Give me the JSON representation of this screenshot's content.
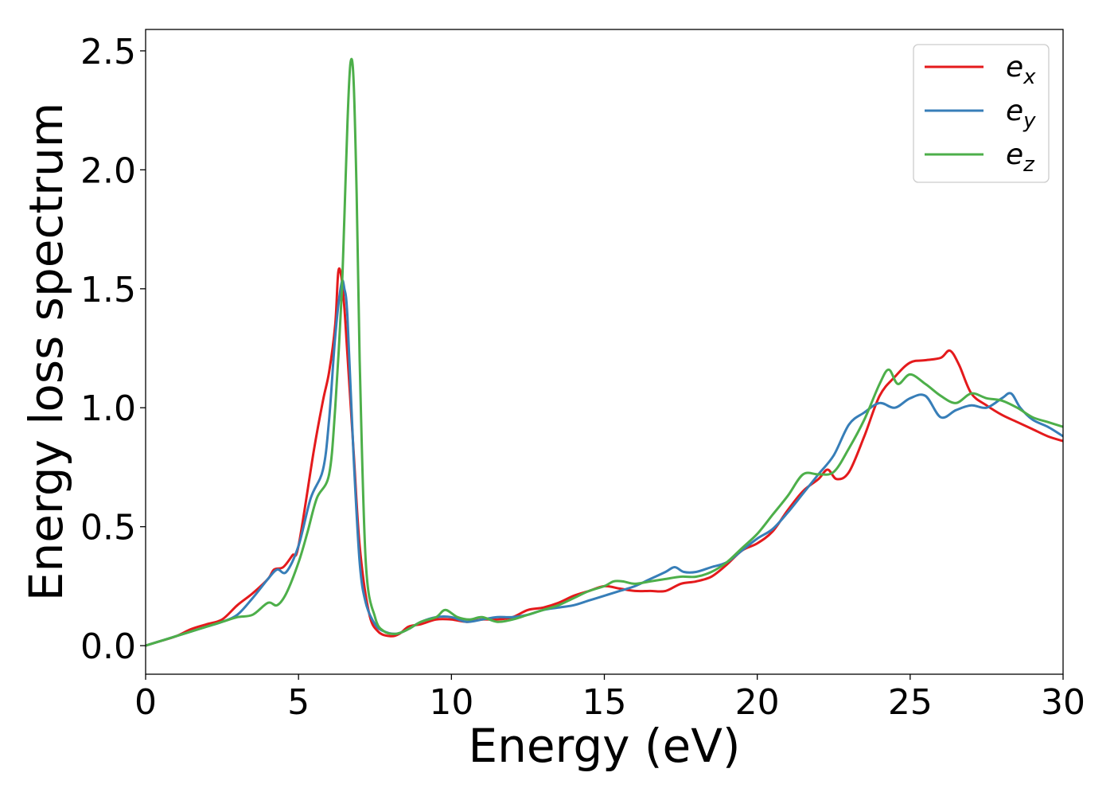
{
  "chart_data": {
    "type": "line",
    "xlabel": "Energy (eV)",
    "ylabel": "Energy loss spectrum",
    "xlim": [
      0,
      30
    ],
    "ylim": [
      -0.12,
      2.59
    ],
    "xticks": [
      0,
      5,
      10,
      15,
      20,
      25,
      30
    ],
    "xtick_labels": [
      "0",
      "5",
      "10",
      "15",
      "20",
      "25",
      "30"
    ],
    "yticks": [
      0.0,
      0.5,
      1.0,
      1.5,
      2.0,
      2.5
    ],
    "ytick_labels": [
      "0.0",
      "0.5",
      "1.0",
      "1.5",
      "2.0",
      "2.5"
    ],
    "grid": false,
    "legend_position": "top-right",
    "series": [
      {
        "name": "e_x",
        "label_base": "e",
        "label_sub": "x",
        "color": "#e41a1c",
        "x": [
          0,
          0.5,
          1,
          1.5,
          2,
          2.5,
          3,
          3.5,
          4,
          4.2,
          4.5,
          4.8,
          5,
          5.5,
          5.8,
          6.0,
          6.2,
          6.3,
          6.4,
          6.5,
          6.6,
          6.8,
          7.0,
          7.3,
          7.6,
          8.0,
          8.3,
          8.6,
          9,
          9.5,
          10,
          10.5,
          11,
          11.5,
          12,
          12.5,
          13,
          13.5,
          14,
          14.5,
          15,
          15.5,
          16,
          16.5,
          17,
          17.5,
          18,
          18.5,
          19,
          19.5,
          20,
          20.5,
          21,
          21.5,
          22,
          22.3,
          22.6,
          23,
          23.5,
          24,
          24.5,
          25,
          25.5,
          26,
          26.3,
          26.6,
          27,
          27.5,
          28,
          28.5,
          29,
          29.5,
          30
        ],
        "values": [
          0,
          0.02,
          0.04,
          0.07,
          0.09,
          0.11,
          0.17,
          0.22,
          0.28,
          0.32,
          0.33,
          0.38,
          0.42,
          0.82,
          1.03,
          1.15,
          1.35,
          1.57,
          1.55,
          1.42,
          1.22,
          0.82,
          0.42,
          0.14,
          0.06,
          0.04,
          0.05,
          0.08,
          0.09,
          0.11,
          0.11,
          0.1,
          0.11,
          0.11,
          0.12,
          0.15,
          0.16,
          0.18,
          0.21,
          0.23,
          0.25,
          0.24,
          0.23,
          0.23,
          0.23,
          0.26,
          0.27,
          0.29,
          0.34,
          0.4,
          0.43,
          0.48,
          0.57,
          0.65,
          0.7,
          0.74,
          0.7,
          0.73,
          0.88,
          1.05,
          1.13,
          1.19,
          1.2,
          1.21,
          1.24,
          1.18,
          1.06,
          1.01,
          0.97,
          0.94,
          0.91,
          0.88,
          0.86
        ]
      },
      {
        "name": "e_y",
        "label_base": "e",
        "label_sub": "y",
        "color": "#377eb8",
        "x": [
          0,
          0.5,
          1,
          1.5,
          2,
          2.5,
          3,
          3.5,
          4,
          4.3,
          4.6,
          5,
          5.4,
          5.8,
          6.0,
          6.2,
          6.4,
          6.5,
          6.6,
          6.8,
          7.0,
          7.2,
          7.5,
          7.8,
          8.2,
          8.6,
          9,
          9.5,
          10,
          10.5,
          11,
          11.5,
          12,
          12.5,
          13,
          13.5,
          14,
          14.5,
          15,
          15.5,
          16,
          16.5,
          17,
          17.3,
          17.6,
          18,
          18.5,
          19,
          19.5,
          20,
          20.5,
          21,
          21.5,
          22,
          22.5,
          23,
          23.5,
          24,
          24.5,
          25,
          25.5,
          26,
          26.5,
          27,
          27.5,
          28,
          28.3,
          28.6,
          29,
          29.5,
          30
        ],
        "values": [
          0,
          0.02,
          0.04,
          0.06,
          0.08,
          0.1,
          0.13,
          0.2,
          0.28,
          0.32,
          0.31,
          0.42,
          0.62,
          0.74,
          0.95,
          1.3,
          1.52,
          1.5,
          1.38,
          0.8,
          0.35,
          0.18,
          0.09,
          0.06,
          0.05,
          0.07,
          0.1,
          0.12,
          0.12,
          0.1,
          0.11,
          0.12,
          0.12,
          0.13,
          0.15,
          0.16,
          0.17,
          0.19,
          0.21,
          0.23,
          0.25,
          0.28,
          0.31,
          0.33,
          0.31,
          0.31,
          0.33,
          0.35,
          0.4,
          0.45,
          0.49,
          0.56,
          0.64,
          0.72,
          0.8,
          0.93,
          0.98,
          1.02,
          1.0,
          1.04,
          1.05,
          0.96,
          0.99,
          1.01,
          1.0,
          1.04,
          1.06,
          1.0,
          0.95,
          0.92,
          0.88
        ]
      },
      {
        "name": "e_z",
        "label_base": "e",
        "label_sub": "z",
        "color": "#4daf4a",
        "x": [
          0,
          0.5,
          1,
          1.5,
          2,
          2.5,
          3,
          3.5,
          4,
          4.3,
          4.6,
          5,
          5.3,
          5.6,
          6.0,
          6.2,
          6.4,
          6.5,
          6.6,
          6.7,
          6.8,
          6.9,
          7.0,
          7.2,
          7.5,
          7.8,
          8.2,
          8.6,
          9,
          9.5,
          9.8,
          10.2,
          10.6,
          11,
          11.5,
          12,
          12.5,
          13,
          13.5,
          14,
          14.5,
          15,
          15.3,
          15.6,
          16,
          16.5,
          17,
          17.5,
          18,
          18.5,
          19,
          19.5,
          20,
          20.5,
          21,
          21.5,
          22,
          22.5,
          23,
          23.5,
          24,
          24.3,
          24.6,
          25,
          25.5,
          26,
          26.5,
          27,
          27.5,
          28,
          28.5,
          29,
          29.5,
          30
        ],
        "values": [
          0,
          0.02,
          0.04,
          0.06,
          0.08,
          0.1,
          0.12,
          0.13,
          0.18,
          0.17,
          0.22,
          0.35,
          0.48,
          0.62,
          0.72,
          1.0,
          1.45,
          1.8,
          2.2,
          2.45,
          2.38,
          1.9,
          1.2,
          0.35,
          0.12,
          0.06,
          0.05,
          0.07,
          0.1,
          0.12,
          0.15,
          0.12,
          0.11,
          0.12,
          0.1,
          0.11,
          0.13,
          0.15,
          0.17,
          0.2,
          0.23,
          0.25,
          0.27,
          0.27,
          0.26,
          0.27,
          0.28,
          0.29,
          0.29,
          0.31,
          0.35,
          0.41,
          0.47,
          0.55,
          0.63,
          0.72,
          0.72,
          0.73,
          0.83,
          0.95,
          1.1,
          1.16,
          1.1,
          1.14,
          1.1,
          1.05,
          1.02,
          1.06,
          1.04,
          1.03,
          1.0,
          0.96,
          0.94,
          0.92
        ]
      }
    ]
  }
}
